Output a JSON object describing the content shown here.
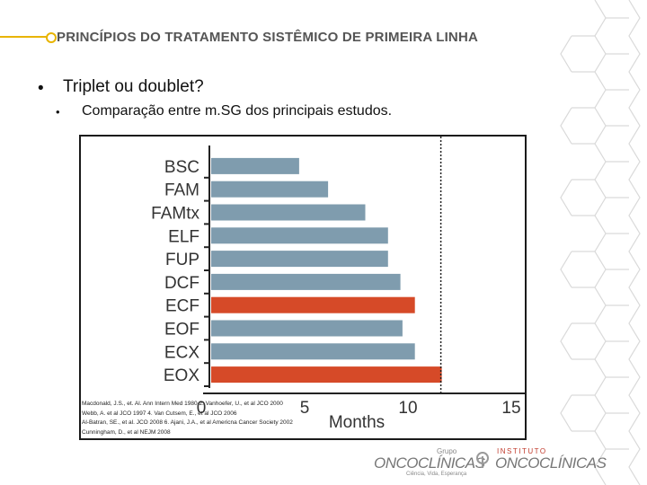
{
  "slide": {
    "title": "PRINCÍPIOS DO TRATAMENTO SISTÊMICO DE PRIMEIRA LINHA",
    "bullet1_marker": "•",
    "bullet1": "Triplet ou doublet?",
    "bullet2_marker": "•",
    "bullet2": "Comparação entre m.SG dos principais estudos."
  },
  "colors": {
    "accent": "#e8b400",
    "bar_default": "#7f9cae",
    "bar_highlight": "#d64a28",
    "pattern": "#d9d9d9"
  },
  "chart_data": {
    "type": "bar",
    "orientation": "horizontal",
    "categories": [
      "BSC",
      "FAM",
      "FAMtx",
      "ELF",
      "FUP",
      "DCF",
      "ECF",
      "EOF",
      "ECX",
      "EOX"
    ],
    "values": [
      4.3,
      5.7,
      7.5,
      8.6,
      8.6,
      9.2,
      9.9,
      9.3,
      9.9,
      11.2
    ],
    "highlighted": [
      "ECF",
      "EOX"
    ],
    "xlabel": "Months",
    "xticks": [
      0,
      5,
      10,
      15
    ],
    "xlim": [
      0,
      15
    ],
    "reference_line": 11.2,
    "grid": false
  },
  "references": [
    "Macdonald, J.S., et. Al. Ann Intern Med 1980  2. Vanhoefer, U., et al JCO 2000",
    "Webb, A. et al JCO 1997  4. Van Cutsem, E., et al JCO 2006",
    "Al-Batran, SE., et al. JCO 2008  6. Ajani, J.A., et al Americna Cancer Society 2002",
    "Cunningham, D., et al NEJM 2008"
  ],
  "logos": {
    "grupo_small": "Grupo",
    "grupo_main": "ONCOCLÍNICAS",
    "grupo_tag": "Ciência, Vida, Esperança",
    "instituto_small": "INSTITUTO",
    "instituto_main": "ONCOCLÍNICAS"
  }
}
